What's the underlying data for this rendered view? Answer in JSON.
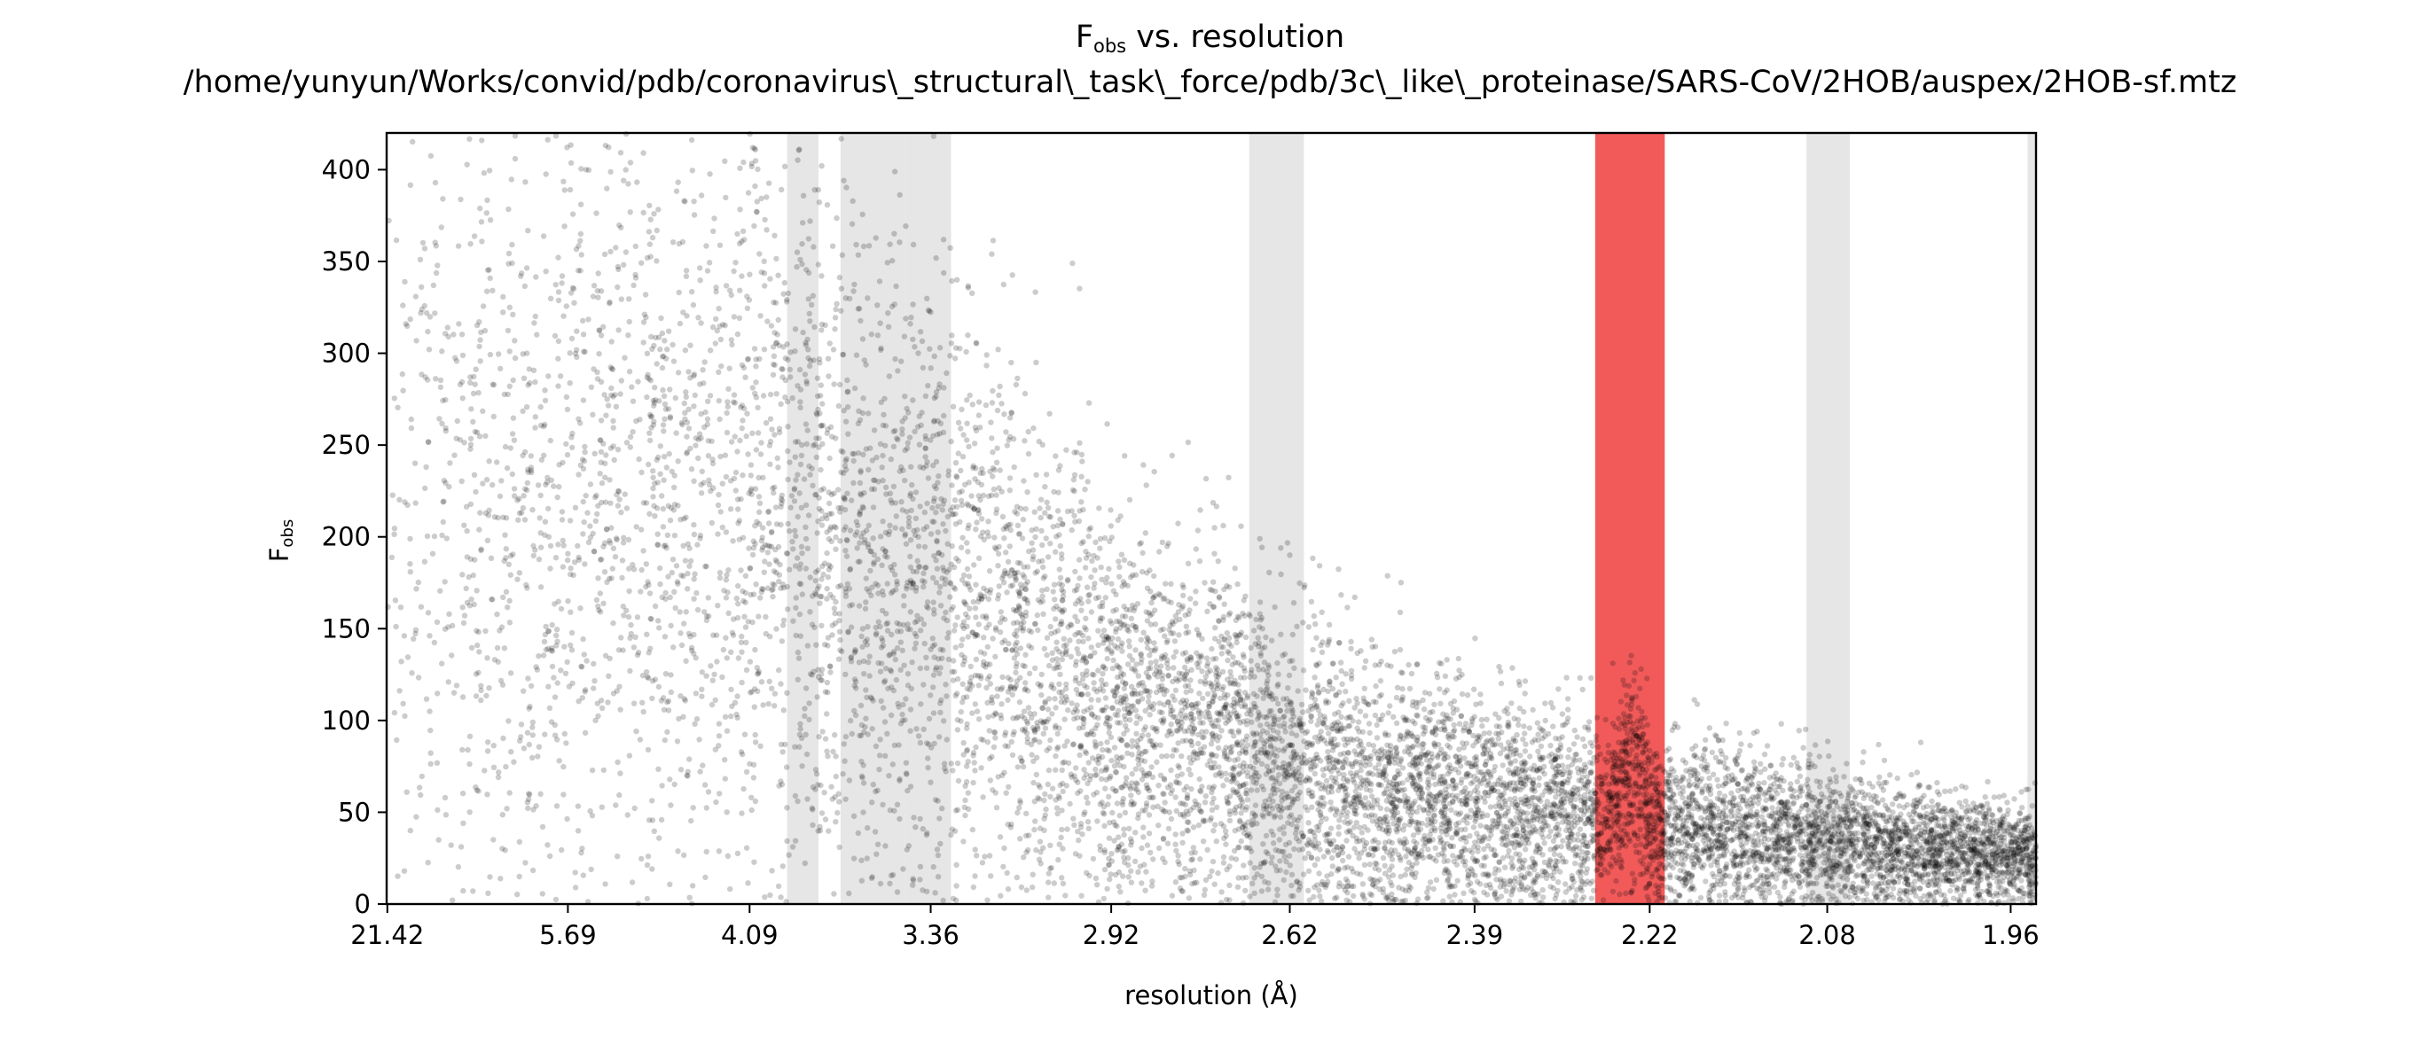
{
  "chart_data": {
    "type": "scatter",
    "title": {
      "prefix": "F",
      "subscript": "obs",
      "suffix": " vs. resolution"
    },
    "subtitle": "/home/yunyun/Works/convid/pdb/coronavirus\\_structural\\_task\\_force/pdb/3c\\_like\\_proteinase/SARS-CoV/2HOB/auspex/2HOB-sf.mtz",
    "xlabel": "resolution (Å)",
    "ylabel": {
      "main": "F",
      "subscript": "obs"
    },
    "x_axis_scale": "1/d² (ticks labelled as resolution d in Å)",
    "xlim_d": [
      22.0,
      1.945
    ],
    "ylim": [
      0,
      420
    ],
    "x_ticks_d": [
      "21.42",
      "5.69",
      "4.09",
      "3.36",
      "2.92",
      "2.62",
      "2.39",
      "2.22",
      "2.08",
      "1.96"
    ],
    "y_ticks": [
      "0",
      "50",
      "100",
      "150",
      "200",
      "250",
      "300",
      "350",
      "400"
    ],
    "grid": false,
    "legend": "none",
    "point_color": "#000000",
    "point_opacity": 0.2,
    "ice_ring_bands_d": [
      {
        "d_range": [
          3.9,
          3.76
        ],
        "color": "#e6e6e6"
      },
      {
        "d_range": [
          3.67,
          3.44
        ],
        "color": "#e6e6e6"
      },
      {
        "d_range": [
          3.44,
          3.3
        ],
        "color": "#e6e6e6"
      },
      {
        "d_range": [
          2.68,
          2.6
        ],
        "color": "#e6e6e6"
      },
      {
        "d_range": [
          2.269,
          2.207
        ],
        "color": "#f25a5a"
      },
      {
        "d_range": [
          2.095,
          2.064
        ],
        "color": "#e6e6e6"
      },
      {
        "d_range": [
          1.95,
          1.945
        ],
        "color": "#e6e6e6"
      }
    ],
    "scatter_density": [
      {
        "resolution_d": 21.42,
        "typical_Fobs": 200,
        "spread": 150
      },
      {
        "resolution_d": 5.69,
        "typical_Fobs": 230,
        "spread": 150
      },
      {
        "resolution_d": 4.09,
        "typical_Fobs": 220,
        "spread": 145
      },
      {
        "resolution_d": 3.36,
        "typical_Fobs": 180,
        "spread": 110
      },
      {
        "resolution_d": 2.92,
        "typical_Fobs": 110,
        "spread": 75
      },
      {
        "resolution_d": 2.62,
        "typical_Fobs": 75,
        "spread": 55
      },
      {
        "resolution_d": 2.39,
        "typical_Fobs": 55,
        "spread": 40
      },
      {
        "resolution_d": 2.22,
        "typical_Fobs": 45,
        "spread": 32
      },
      {
        "resolution_d": 2.08,
        "typical_Fobs": 35,
        "spread": 25
      },
      {
        "resolution_d": 1.96,
        "typical_Fobs": 27,
        "spread": 18
      }
    ],
    "anomaly_peak": {
      "resolution_d": 2.237,
      "peak_Fobs": 95,
      "base_Fobs": 30
    }
  }
}
